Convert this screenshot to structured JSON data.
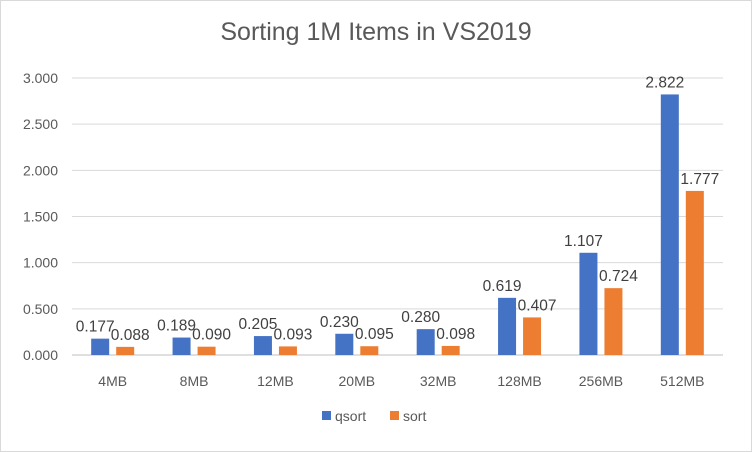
{
  "chart_data": {
    "type": "bar",
    "title": "Sorting 1M Items in VS2019",
    "categories": [
      "4MB",
      "8MB",
      "12MB",
      "20MB",
      "32MB",
      "128MB",
      "256MB",
      "512MB"
    ],
    "series": [
      {
        "name": "qsort",
        "color": "#4472C4",
        "values": [
          0.177,
          0.189,
          0.205,
          0.23,
          0.28,
          0.619,
          1.107,
          2.822
        ],
        "labels": [
          "0.177",
          "0.189",
          "0.205",
          "0.230",
          "0.280",
          "0.619",
          "1.107",
          "2.822"
        ]
      },
      {
        "name": "sort",
        "color": "#ED7D31",
        "values": [
          0.088,
          0.09,
          0.093,
          0.095,
          0.098,
          0.407,
          0.724,
          1.777
        ],
        "labels": [
          "0.088",
          "0.090",
          "0.093",
          "0.095",
          "0.098",
          "0.407",
          "0.724",
          "1.777"
        ]
      }
    ],
    "yticks": [
      "0.000",
      "0.500",
      "1.000",
      "1.500",
      "2.000",
      "2.500",
      "3.000"
    ],
    "ylim": [
      0,
      3
    ],
    "grid": true,
    "legend": "bottom"
  }
}
